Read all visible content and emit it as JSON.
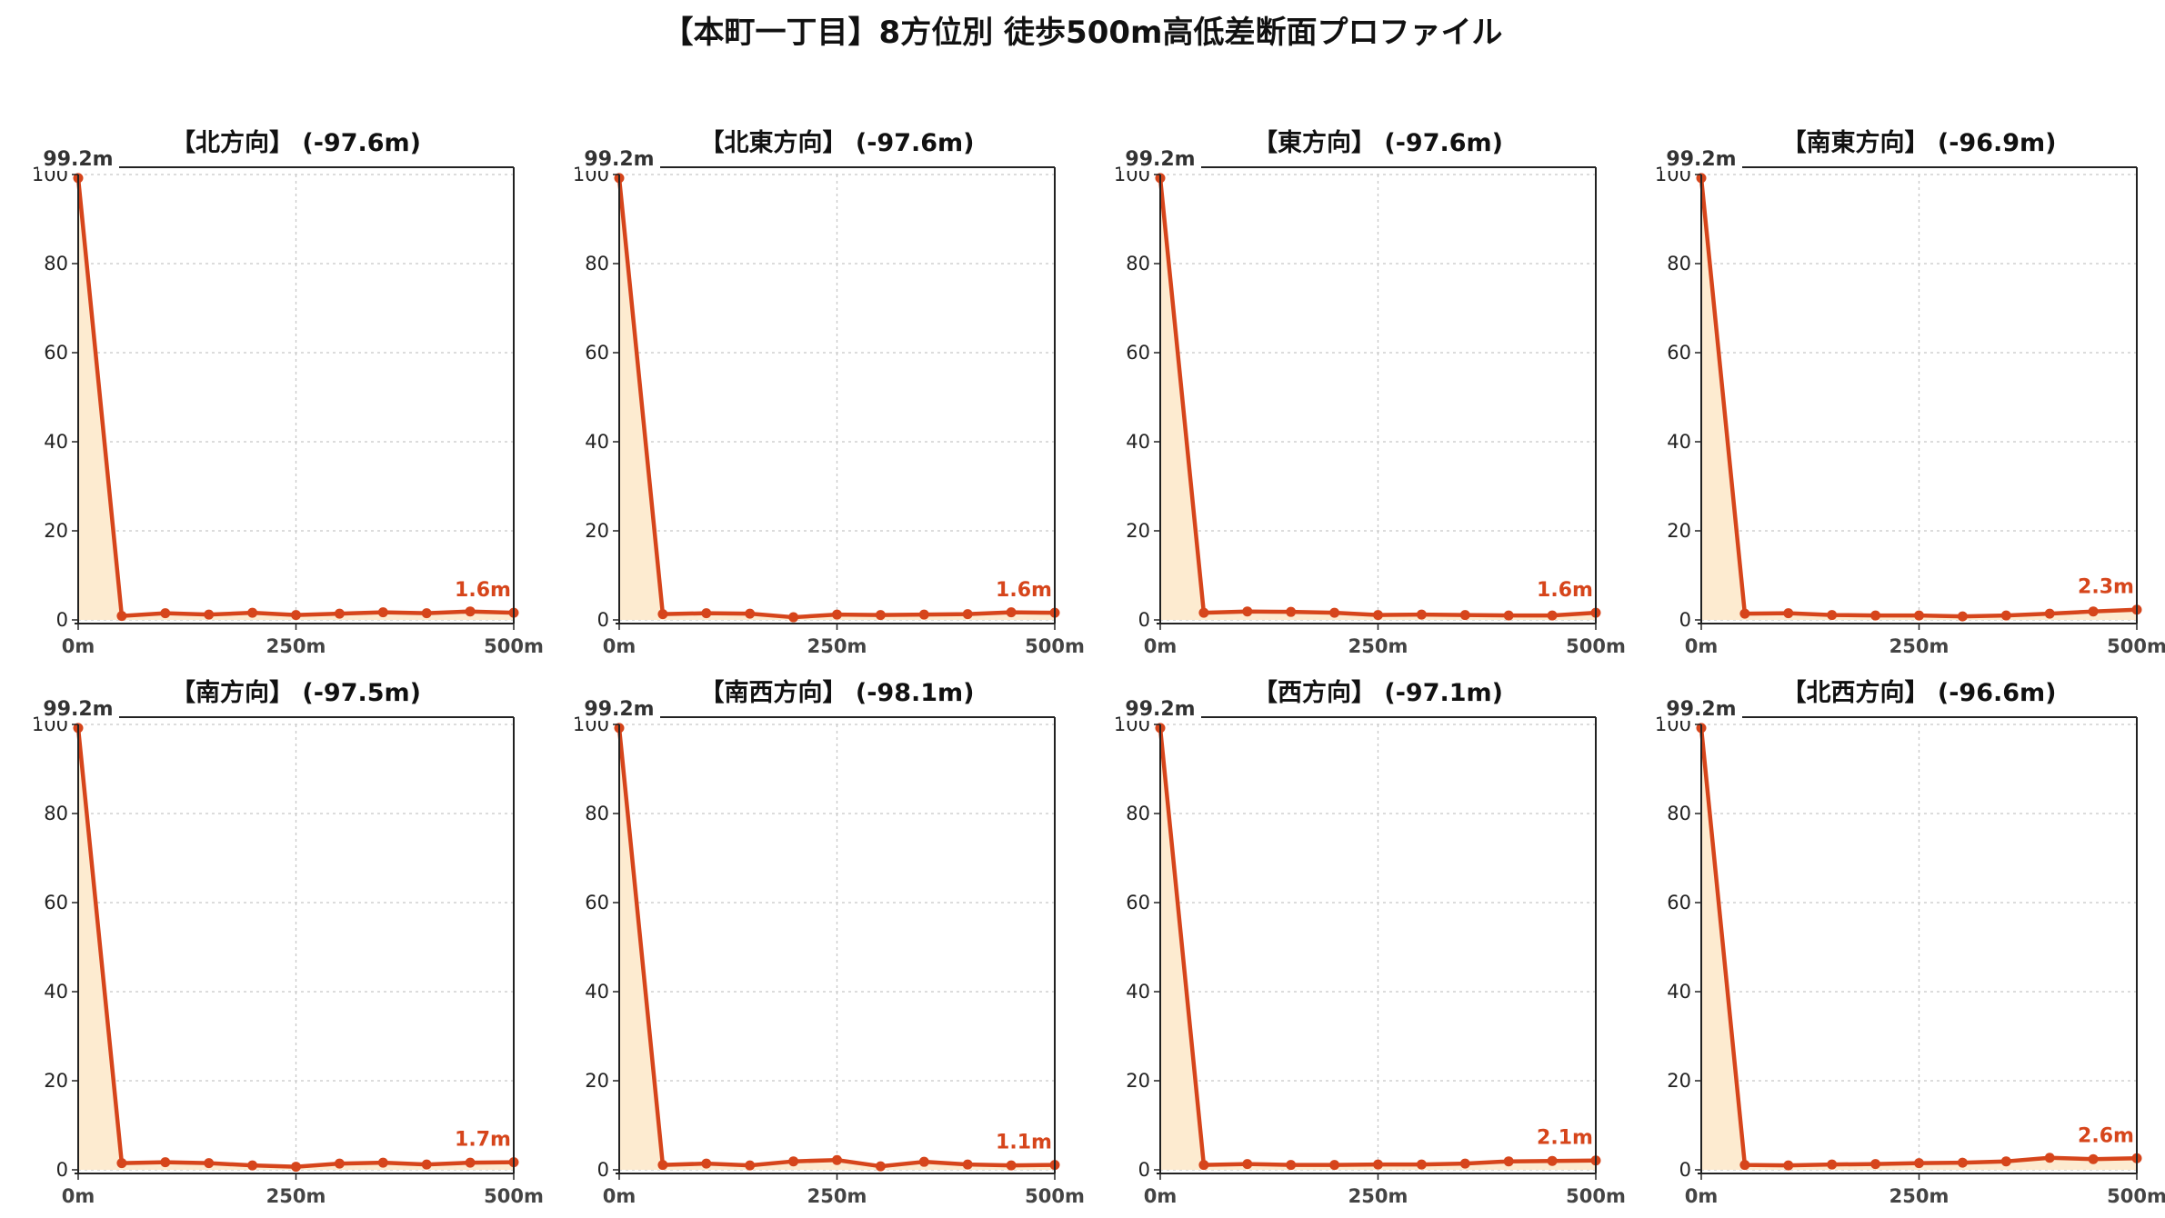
{
  "title": "【本町一丁目】8方位別 徒歩500m高低差断面プロファイル",
  "colors": {
    "line": "#d6451b",
    "fill": "#fdebd0",
    "grid": "#c8c8c8",
    "axis": "#222222",
    "end_label": "#d6451b"
  },
  "chart_data": [
    {
      "type": "area",
      "title": "【北方向】 (-97.6m)",
      "x": [
        0,
        50,
        100,
        150,
        200,
        250,
        300,
        350,
        400,
        450,
        500
      ],
      "values": [
        99.2,
        0.9,
        1.5,
        1.2,
        1.6,
        1.1,
        1.4,
        1.7,
        1.5,
        1.9,
        1.6
      ],
      "xticks": [
        "0m",
        "250m",
        "500m"
      ],
      "yticks": [
        0,
        20,
        40,
        60,
        80,
        100
      ],
      "xlim": [
        0,
        500
      ],
      "ylim": [
        0,
        100
      ],
      "start_label": "99.2m",
      "end_label": "1.6m",
      "grid": true
    },
    {
      "type": "area",
      "title": "【北東方向】 (-97.6m)",
      "x": [
        0,
        50,
        100,
        150,
        200,
        250,
        300,
        350,
        400,
        450,
        500
      ],
      "values": [
        99.2,
        1.3,
        1.5,
        1.4,
        0.6,
        1.2,
        1.1,
        1.2,
        1.3,
        1.7,
        1.6
      ],
      "xticks": [
        "0m",
        "250m",
        "500m"
      ],
      "yticks": [
        0,
        20,
        40,
        60,
        80,
        100
      ],
      "xlim": [
        0,
        500
      ],
      "ylim": [
        0,
        100
      ],
      "start_label": "99.2m",
      "end_label": "1.6m",
      "grid": true
    },
    {
      "type": "area",
      "title": "【東方向】 (-97.6m)",
      "x": [
        0,
        50,
        100,
        150,
        200,
        250,
        300,
        350,
        400,
        450,
        500
      ],
      "values": [
        99.2,
        1.6,
        1.9,
        1.8,
        1.6,
        1.1,
        1.2,
        1.1,
        1.0,
        1.0,
        1.6
      ],
      "xticks": [
        "0m",
        "250m",
        "500m"
      ],
      "yticks": [
        0,
        20,
        40,
        60,
        80,
        100
      ],
      "xlim": [
        0,
        500
      ],
      "ylim": [
        0,
        100
      ],
      "start_label": "99.2m",
      "end_label": "1.6m",
      "grid": true
    },
    {
      "type": "area",
      "title": "【南東方向】 (-96.9m)",
      "x": [
        0,
        50,
        100,
        150,
        200,
        250,
        300,
        350,
        400,
        450,
        500
      ],
      "values": [
        99.2,
        1.4,
        1.5,
        1.1,
        1.0,
        1.0,
        0.8,
        1.0,
        1.4,
        1.9,
        2.3
      ],
      "xticks": [
        "0m",
        "250m",
        "500m"
      ],
      "yticks": [
        0,
        20,
        40,
        60,
        80,
        100
      ],
      "xlim": [
        0,
        500
      ],
      "ylim": [
        0,
        100
      ],
      "start_label": "99.2m",
      "end_label": "2.3m",
      "grid": true
    },
    {
      "type": "area",
      "title": "【南方向】 (-97.5m)",
      "x": [
        0,
        50,
        100,
        150,
        200,
        250,
        300,
        350,
        400,
        450,
        500
      ],
      "values": [
        99.2,
        1.5,
        1.7,
        1.5,
        1.0,
        0.7,
        1.4,
        1.6,
        1.2,
        1.6,
        1.7
      ],
      "xticks": [
        "0m",
        "250m",
        "500m"
      ],
      "yticks": [
        0,
        20,
        40,
        60,
        80,
        100
      ],
      "xlim": [
        0,
        500
      ],
      "ylim": [
        0,
        100
      ],
      "start_label": "99.2m",
      "end_label": "1.7m",
      "grid": true
    },
    {
      "type": "area",
      "title": "【南西方向】 (-98.1m)",
      "x": [
        0,
        50,
        100,
        150,
        200,
        250,
        300,
        350,
        400,
        450,
        500
      ],
      "values": [
        99.2,
        1.1,
        1.4,
        1.0,
        1.9,
        2.2,
        0.8,
        1.8,
        1.2,
        1.0,
        1.1
      ],
      "xticks": [
        "0m",
        "250m",
        "500m"
      ],
      "yticks": [
        0,
        20,
        40,
        60,
        80,
        100
      ],
      "xlim": [
        0,
        500
      ],
      "ylim": [
        0,
        100
      ],
      "start_label": "99.2m",
      "end_label": "1.1m",
      "grid": true
    },
    {
      "type": "area",
      "title": "【西方向】 (-97.1m)",
      "x": [
        0,
        50,
        100,
        150,
        200,
        250,
        300,
        350,
        400,
        450,
        500
      ],
      "values": [
        99.2,
        1.1,
        1.3,
        1.1,
        1.1,
        1.2,
        1.2,
        1.4,
        1.9,
        2.0,
        2.1
      ],
      "xticks": [
        "0m",
        "250m",
        "500m"
      ],
      "yticks": [
        0,
        20,
        40,
        60,
        80,
        100
      ],
      "xlim": [
        0,
        500
      ],
      "ylim": [
        0,
        100
      ],
      "start_label": "99.2m",
      "end_label": "2.1m",
      "grid": true
    },
    {
      "type": "area",
      "title": "【北西方向】 (-96.6m)",
      "x": [
        0,
        50,
        100,
        150,
        200,
        250,
        300,
        350,
        400,
        450,
        500
      ],
      "values": [
        99.2,
        1.1,
        1.0,
        1.2,
        1.3,
        1.5,
        1.6,
        1.9,
        2.7,
        2.4,
        2.6
      ],
      "xticks": [
        "0m",
        "250m",
        "500m"
      ],
      "yticks": [
        0,
        20,
        40,
        60,
        80,
        100
      ],
      "xlim": [
        0,
        500
      ],
      "ylim": [
        0,
        100
      ],
      "start_label": "99.2m",
      "end_label": "2.6m",
      "grid": true
    }
  ]
}
